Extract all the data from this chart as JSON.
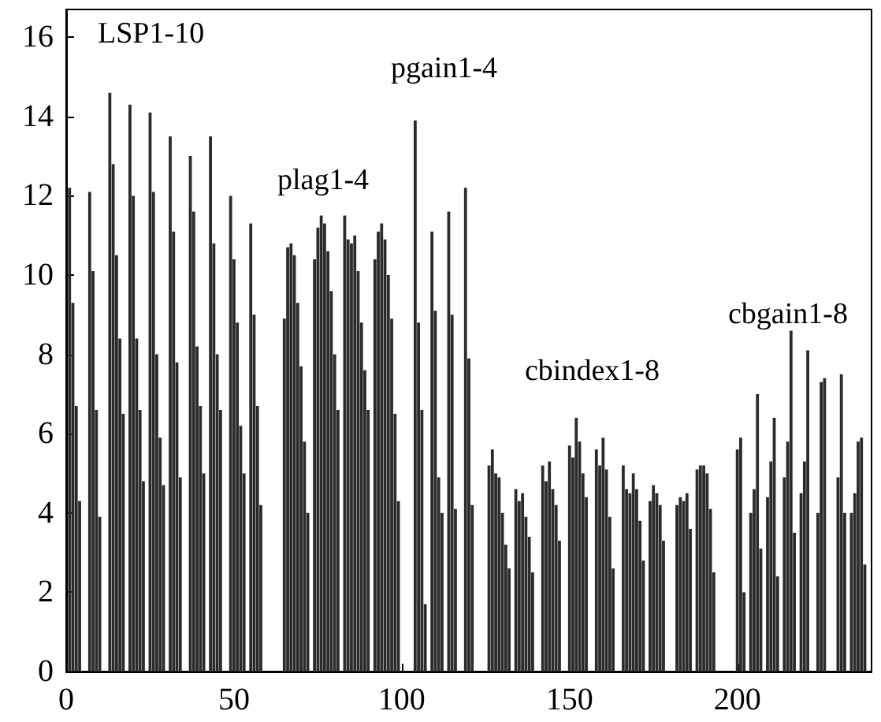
{
  "chart_data": {
    "type": "bar",
    "color": "#2b2b2b",
    "x": [
      1,
      2,
      3,
      4,
      5,
      6,
      7,
      8,
      9,
      10,
      11,
      12,
      13,
      14,
      15,
      16,
      17,
      18,
      19,
      20,
      21,
      22,
      23,
      24,
      25,
      26,
      27,
      28,
      29,
      30,
      31,
      32,
      33,
      34,
      35,
      36,
      37,
      38,
      39,
      40,
      41,
      42,
      43,
      44,
      45,
      46,
      47,
      48,
      49,
      50,
      51,
      52,
      53,
      54,
      55,
      56,
      57,
      58,
      59,
      60,
      61,
      62,
      63,
      64,
      65,
      66,
      67,
      68,
      69,
      70,
      71,
      72,
      73,
      74,
      75,
      76,
      77,
      78,
      79,
      80,
      81,
      82,
      83,
      84,
      85,
      86,
      87,
      88,
      89,
      90,
      91,
      92,
      93,
      94,
      95,
      96,
      97,
      98,
      99,
      100,
      101,
      102,
      103,
      104,
      105,
      106,
      107,
      108,
      109,
      110,
      111,
      112,
      113,
      114,
      115,
      116,
      117,
      118,
      119,
      120,
      121,
      122,
      123,
      124,
      125,
      126,
      127,
      128,
      129,
      130,
      131,
      132,
      133,
      134,
      135,
      136,
      137,
      138,
      139,
      140,
      141,
      142,
      143,
      144,
      145,
      146,
      147,
      148,
      149,
      150,
      151,
      152,
      153,
      154,
      155,
      156,
      157,
      158,
      159,
      160,
      161,
      162,
      163,
      164,
      165,
      166,
      167,
      168,
      169,
      170,
      171,
      172,
      173,
      174,
      175,
      176,
      177,
      178,
      179,
      180,
      181,
      182,
      183,
      184,
      185,
      186,
      187,
      188,
      189,
      190,
      191,
      192,
      193,
      194,
      195,
      196,
      197,
      198,
      199,
      200,
      201,
      202,
      203,
      204,
      205,
      206,
      207,
      208,
      209,
      210,
      211,
      212,
      213,
      214,
      215,
      216,
      217,
      218,
      219,
      220,
      221,
      222,
      223,
      224,
      225,
      226,
      227,
      228,
      229,
      230,
      231,
      232,
      233,
      234,
      235,
      236,
      237,
      238
    ],
    "values": [
      12.2,
      9.3,
      6.7,
      4.3,
      null,
      null,
      12.1,
      10.1,
      6.6,
      3.9,
      null,
      null,
      14.6,
      12.8,
      10.5,
      8.4,
      6.5,
      null,
      14.3,
      12.0,
      8.4,
      6.6,
      4.8,
      null,
      14.1,
      12.1,
      8.0,
      5.9,
      4.7,
      null,
      13.5,
      11.1,
      7.8,
      4.9,
      null,
      null,
      13.0,
      11.6,
      8.2,
      6.7,
      5.0,
      null,
      13.5,
      10.8,
      8.0,
      6.6,
      null,
      null,
      12.0,
      10.4,
      8.8,
      6.2,
      5.0,
      null,
      11.3,
      9.0,
      6.7,
      4.2,
      null,
      null,
      null,
      null,
      null,
      null,
      8.9,
      10.7,
      10.8,
      10.5,
      9.3,
      7.7,
      5.8,
      4.0,
      null,
      10.4,
      11.2,
      11.5,
      11.3,
      10.6,
      9.6,
      8.0,
      6.6,
      null,
      11.5,
      10.9,
      10.8,
      11.0,
      10.1,
      8.8,
      7.6,
      6.6,
      null,
      10.4,
      11.1,
      11.3,
      10.9,
      10.0,
      8.9,
      6.5,
      4.3,
      null,
      null,
      null,
      null,
      13.9,
      8.8,
      6.6,
      1.7,
      null,
      11.1,
      9.1,
      4.9,
      4.0,
      null,
      11.6,
      9.0,
      4.1,
      null,
      null,
      12.2,
      7.9,
      4.2,
      null,
      null,
      null,
      null,
      5.2,
      5.6,
      5.0,
      4.9,
      4.0,
      3.2,
      2.6,
      null,
      4.6,
      4.3,
      4.5,
      3.9,
      3.4,
      2.5,
      null,
      null,
      5.2,
      4.8,
      5.3,
      4.6,
      4.2,
      3.3,
      null,
      null,
      5.7,
      5.4,
      6.4,
      5.8,
      5.0,
      4.4,
      null,
      null,
      5.6,
      5.2,
      5.9,
      5.1,
      3.9,
      2.6,
      null,
      null,
      5.2,
      4.6,
      4.5,
      5.0,
      4.6,
      3.8,
      2.8,
      null,
      4.3,
      4.7,
      4.5,
      4.2,
      3.3,
      null,
      null,
      null,
      4.2,
      4.4,
      4.3,
      4.5,
      3.6,
      null,
      5.1,
      5.2,
      5.2,
      5.0,
      4.1,
      2.5,
      null,
      null,
      null,
      null,
      null,
      null,
      5.6,
      5.9,
      2.0,
      null,
      4.0,
      4.6,
      7.0,
      3.1,
      null,
      4.4,
      5.3,
      6.4,
      2.4,
      null,
      4.9,
      5.8,
      8.6,
      3.5,
      null,
      4.5,
      5.3,
      8.1,
      null,
      null,
      4.0,
      7.3,
      7.4,
      null,
      null,
      null,
      4.9,
      7.5,
      4.0,
      null,
      4.0,
      4.5,
      5.8,
      5.9,
      2.7
    ],
    "xlim": [
      0,
      240
    ],
    "xticks": [
      0,
      50,
      100,
      150,
      200
    ],
    "ylim": [
      0,
      16.7
    ],
    "yticks": [
      0,
      2,
      4,
      6,
      8,
      10,
      12,
      14,
      16
    ],
    "grid": false,
    "annotations": [
      "LSP1-10",
      "plag1-4",
      "pgain1-4",
      "cbindex1-8",
      "cbgain1-8"
    ]
  }
}
